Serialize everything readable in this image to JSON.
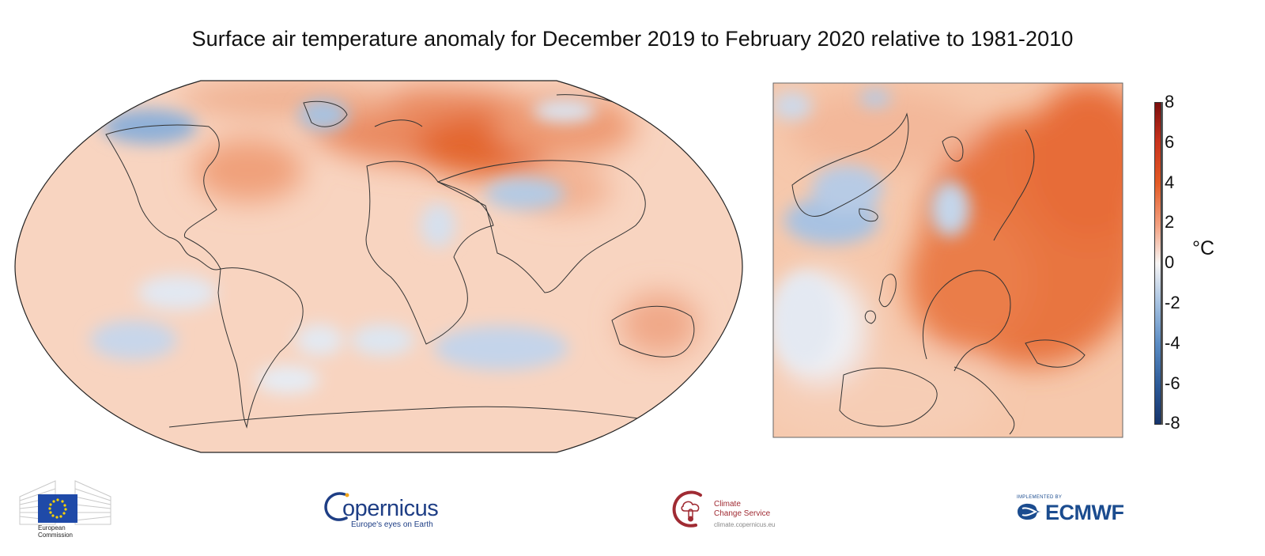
{
  "title": "Surface air temperature anomaly for December 2019 to February 2020 relative to 1981-2010",
  "colorbar": {
    "ticks": [
      "8",
      "6",
      "4",
      "2",
      "0",
      "-2",
      "-4",
      "-6",
      "-8"
    ],
    "unit": "°C",
    "colors": {
      "max": "#7a0d0d",
      "warm": "#e35a25",
      "mild": "#f8c4a8",
      "zero": "#f7f5f4",
      "cool": "#a9c4e2",
      "cold": "#3a6ea8",
      "min": "#15336b"
    }
  },
  "maps": {
    "world": {
      "projection": "Robinson",
      "region": "Global"
    },
    "europe": {
      "region": "Europe"
    }
  },
  "logos": {
    "ec": {
      "line1": "European",
      "line2": "Commission"
    },
    "copernicus": {
      "word": "opernicus",
      "tagline": "Europe's eyes on Earth"
    },
    "c3s": {
      "line1": "Climate",
      "line2": "Change Service",
      "url": "climate.copernicus.eu"
    },
    "ecmwf": {
      "small": "IMPLEMENTED BY",
      "word": "ECMWF"
    }
  }
}
